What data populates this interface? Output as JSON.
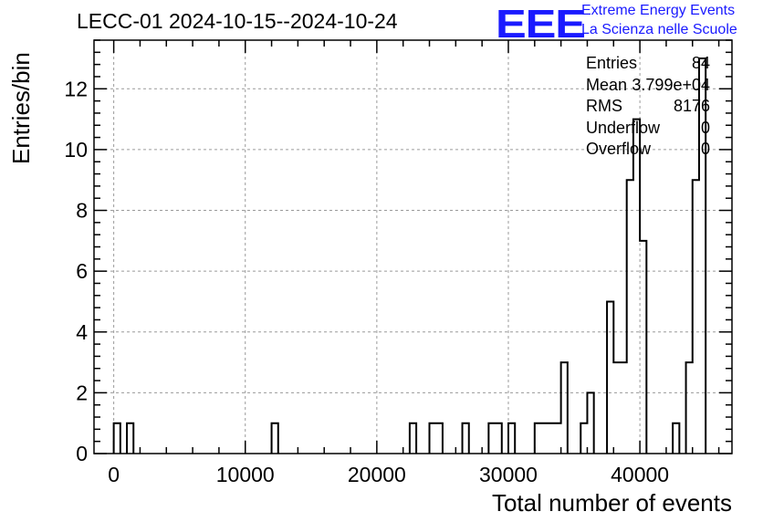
{
  "title": "LECC-01 2024-10-15--2024-10-24",
  "logo": {
    "mark": "EEE",
    "line1": "Extreme Energy Events",
    "line2": "La Scienza nelle Scuole",
    "color": "#1a1aff"
  },
  "stats": [
    {
      "label": "Entries",
      "value": "84"
    },
    {
      "label": "Mean",
      "value": "3.799e+04"
    },
    {
      "label": "RMS",
      "value": "8176"
    },
    {
      "label": "Underflow",
      "value": "0"
    },
    {
      "label": "Overflow",
      "value": "0"
    }
  ],
  "chart_data": {
    "type": "histogram",
    "xlabel": "Total number of events",
    "ylabel": "Entries/bin",
    "xlim": [
      -1500,
      47000
    ],
    "ylim": [
      0,
      13.6
    ],
    "xticks": [
      0,
      10000,
      20000,
      30000,
      40000
    ],
    "yticks": [
      0,
      2,
      4,
      6,
      8,
      10,
      12
    ],
    "grid": true,
    "line_color": "#000000",
    "bin_width": 500,
    "bins": [
      {
        "x0": 0,
        "count": 1
      },
      {
        "x0": 1000,
        "count": 1
      },
      {
        "x0": 12000,
        "count": 1
      },
      {
        "x0": 22500,
        "count": 1
      },
      {
        "x0": 24000,
        "count": 1
      },
      {
        "x0": 24500,
        "count": 1
      },
      {
        "x0": 26500,
        "count": 1
      },
      {
        "x0": 28500,
        "count": 1
      },
      {
        "x0": 29000,
        "count": 1
      },
      {
        "x0": 30000,
        "count": 1
      },
      {
        "x0": 32000,
        "count": 1
      },
      {
        "x0": 32500,
        "count": 1
      },
      {
        "x0": 33000,
        "count": 1
      },
      {
        "x0": 33500,
        "count": 1
      },
      {
        "x0": 34000,
        "count": 3
      },
      {
        "x0": 35500,
        "count": 1
      },
      {
        "x0": 36000,
        "count": 2
      },
      {
        "x0": 37500,
        "count": 5
      },
      {
        "x0": 38000,
        "count": 3
      },
      {
        "x0": 38500,
        "count": 3
      },
      {
        "x0": 39000,
        "count": 9
      },
      {
        "x0": 39500,
        "count": 11
      },
      {
        "x0": 40000,
        "count": 7
      },
      {
        "x0": 42500,
        "count": 1
      },
      {
        "x0": 43500,
        "count": 3
      },
      {
        "x0": 44000,
        "count": 9
      },
      {
        "x0": 44500,
        "count": 13
      }
    ]
  }
}
